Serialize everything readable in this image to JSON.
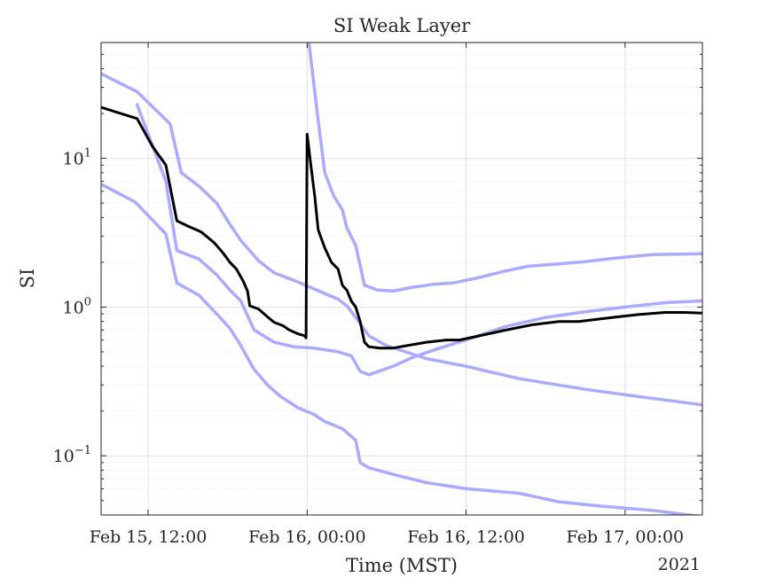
{
  "chart_data": {
    "type": "line",
    "title": "SI Weak Layer",
    "xlabel": "Time (MST)",
    "ylabel": "SI",
    "year_label": "2021",
    "x_range": [
      "2021-02-15T08:27",
      "2021-02-17T05:50"
    ],
    "ylim": [
      0.04,
      60
    ],
    "yscale": "log",
    "grid": true,
    "x_ticks": [
      {
        "x": "2021-02-15T12:00",
        "label": "Feb 15, 12:00"
      },
      {
        "x": "2021-02-16T00:00",
        "label": "Feb 16, 00:00"
      },
      {
        "x": "2021-02-16T12:00",
        "label": "Feb 16, 12:00"
      },
      {
        "x": "2021-02-17T00:00",
        "label": "Feb 17, 00:00"
      }
    ],
    "y_ticks": [
      {
        "y": 0.1,
        "base": "10",
        "exp": "−1"
      },
      {
        "y": 1,
        "base": "10",
        "exp": "0"
      },
      {
        "y": 10,
        "base": "10",
        "exp": "1"
      }
    ],
    "colors": {
      "main": "#000000",
      "band": "#aaaaff",
      "grid": "#e1e1e1",
      "axis": "#262626"
    },
    "series": [
      {
        "role": "band",
        "points": [
          [
            "2021-02-15T08:27",
            37
          ],
          [
            "2021-02-15T11:10",
            28
          ],
          [
            "2021-02-15T13:40",
            17
          ],
          [
            "2021-02-15T14:30",
            8
          ],
          [
            "2021-02-15T15:50",
            6.5
          ],
          [
            "2021-02-15T17:10",
            5
          ],
          [
            "2021-02-15T18:10",
            3.6
          ],
          [
            "2021-02-15T19:00",
            2.8
          ],
          [
            "2021-02-15T20:20",
            2.05
          ],
          [
            "2021-02-15T21:30",
            1.7
          ],
          [
            "2021-02-15T23:20",
            1.47
          ],
          [
            "2021-02-16T01:00",
            1.27
          ],
          [
            "2021-02-16T02:20",
            1.13
          ],
          [
            "2021-02-16T03:00",
            1.02
          ],
          [
            "2021-02-16T03:40",
            0.85
          ],
          [
            "2021-02-16T04:40",
            0.64
          ],
          [
            "2021-02-16T06:00",
            0.55
          ],
          [
            "2021-02-16T09:00",
            0.45
          ],
          [
            "2021-02-16T12:00",
            0.4
          ],
          [
            "2021-02-16T16:00",
            0.33
          ],
          [
            "2021-02-16T21:00",
            0.28
          ],
          [
            "2021-02-17T01:00",
            0.25
          ],
          [
            "2021-02-17T05:50",
            0.22
          ]
        ]
      },
      {
        "role": "band",
        "points": [
          [
            "2021-02-15T11:10",
            23
          ],
          [
            "2021-02-15T13:20",
            7
          ],
          [
            "2021-02-15T14:10",
            2.4
          ],
          [
            "2021-02-15T15:50",
            2.1
          ],
          [
            "2021-02-15T17:10",
            1.65
          ],
          [
            "2021-02-15T18:10",
            1.3
          ],
          [
            "2021-02-15T19:00",
            1.1
          ],
          [
            "2021-02-15T20:00",
            0.7
          ],
          [
            "2021-02-15T21:30",
            0.58
          ],
          [
            "2021-02-15T23:00",
            0.54
          ],
          [
            "2021-02-16T00:30",
            0.53
          ],
          [
            "2021-02-16T02:20",
            0.5
          ],
          [
            "2021-02-16T03:20",
            0.47
          ],
          [
            "2021-02-16T04:00",
            0.37
          ],
          [
            "2021-02-16T04:40",
            0.35
          ],
          [
            "2021-02-16T06:30",
            0.4
          ],
          [
            "2021-02-16T08:00",
            0.46
          ],
          [
            "2021-02-16T10:00",
            0.53
          ],
          [
            "2021-02-16T12:00",
            0.6
          ],
          [
            "2021-02-16T15:00",
            0.74
          ],
          [
            "2021-02-16T18:00",
            0.85
          ],
          [
            "2021-02-16T21:00",
            0.93
          ],
          [
            "2021-02-17T00:00",
            1.0
          ],
          [
            "2021-02-17T03:00",
            1.07
          ],
          [
            "2021-02-17T05:50",
            1.1
          ]
        ]
      },
      {
        "role": "band",
        "points": [
          [
            "2021-02-15T08:27",
            6.7
          ],
          [
            "2021-02-15T11:00",
            5.1
          ],
          [
            "2021-02-15T13:20",
            3.1
          ],
          [
            "2021-02-15T14:10",
            1.45
          ],
          [
            "2021-02-15T15:50",
            1.2
          ],
          [
            "2021-02-15T17:10",
            0.9
          ],
          [
            "2021-02-15T18:10",
            0.72
          ],
          [
            "2021-02-15T19:00",
            0.55
          ],
          [
            "2021-02-15T20:00",
            0.38
          ],
          [
            "2021-02-15T21:00",
            0.3
          ],
          [
            "2021-02-15T22:00",
            0.25
          ],
          [
            "2021-02-15T23:20",
            0.21
          ],
          [
            "2021-02-16T00:30",
            0.19
          ],
          [
            "2021-02-16T01:20",
            0.17
          ],
          [
            "2021-02-16T02:40",
            0.152
          ],
          [
            "2021-02-16T03:40",
            0.127
          ],
          [
            "2021-02-16T04:00",
            0.09
          ],
          [
            "2021-02-16T04:40",
            0.083
          ],
          [
            "2021-02-16T06:30",
            0.075
          ],
          [
            "2021-02-16T09:00",
            0.066
          ],
          [
            "2021-02-16T12:00",
            0.06
          ],
          [
            "2021-02-16T16:00",
            0.056
          ],
          [
            "2021-02-16T19:00",
            0.049
          ],
          [
            "2021-02-16T22:00",
            0.046
          ],
          [
            "2021-02-17T02:00",
            0.043
          ],
          [
            "2021-02-17T05:50",
            0.039
          ]
        ]
      },
      {
        "role": "band",
        "points": [
          [
            "2021-02-16T00:08",
            60
          ],
          [
            "2021-02-16T00:50",
            18
          ],
          [
            "2021-02-16T01:20",
            8
          ],
          [
            "2021-02-16T02:00",
            5.6
          ],
          [
            "2021-02-16T02:40",
            4.5
          ],
          [
            "2021-02-16T03:00",
            3.4
          ],
          [
            "2021-02-16T03:40",
            2.6
          ],
          [
            "2021-02-16T04:20",
            1.4
          ],
          [
            "2021-02-16T05:20",
            1.3
          ],
          [
            "2021-02-16T06:30",
            1.28
          ],
          [
            "2021-02-16T08:00",
            1.36
          ],
          [
            "2021-02-16T09:30",
            1.42
          ],
          [
            "2021-02-16T11:00",
            1.45
          ],
          [
            "2021-02-16T13:00",
            1.58
          ],
          [
            "2021-02-16T15:00",
            1.75
          ],
          [
            "2021-02-16T16:40",
            1.88
          ],
          [
            "2021-02-16T19:00",
            1.95
          ],
          [
            "2021-02-16T21:00",
            2.02
          ],
          [
            "2021-02-16T23:00",
            2.12
          ],
          [
            "2021-02-17T02:00",
            2.25
          ],
          [
            "2021-02-17T05:50",
            2.28
          ]
        ]
      },
      {
        "role": "main",
        "points": [
          [
            "2021-02-15T08:27",
            22
          ],
          [
            "2021-02-15T11:10",
            18.5
          ],
          [
            "2021-02-15T12:20",
            12
          ],
          [
            "2021-02-15T13:20",
            9
          ],
          [
            "2021-02-15T14:10",
            3.8
          ],
          [
            "2021-02-15T15:00",
            3.5
          ],
          [
            "2021-02-15T16:00",
            3.2
          ],
          [
            "2021-02-15T17:00",
            2.7
          ],
          [
            "2021-02-15T17:40",
            2.3
          ],
          [
            "2021-02-15T18:10",
            2.0
          ],
          [
            "2021-02-15T18:40",
            1.8
          ],
          [
            "2021-02-15T19:10",
            1.5
          ],
          [
            "2021-02-15T19:30",
            1.28
          ],
          [
            "2021-02-15T19:40",
            1.02
          ],
          [
            "2021-02-15T20:20",
            0.97
          ],
          [
            "2021-02-15T21:00",
            0.86
          ],
          [
            "2021-02-15T21:30",
            0.79
          ],
          [
            "2021-02-15T22:10",
            0.75
          ],
          [
            "2021-02-15T22:40",
            0.7
          ],
          [
            "2021-02-15T23:20",
            0.66
          ],
          [
            "2021-02-15T23:50",
            0.64
          ],
          [
            "2021-02-15T23:55",
            0.62
          ],
          [
            "2021-02-16T00:00",
            14.5
          ],
          [
            "2021-02-16T00:15",
            9.5
          ],
          [
            "2021-02-16T00:35",
            5.5
          ],
          [
            "2021-02-16T00:50",
            3.3
          ],
          [
            "2021-02-16T01:20",
            2.5
          ],
          [
            "2021-02-16T01:50",
            2.0
          ],
          [
            "2021-02-16T02:20",
            1.8
          ],
          [
            "2021-02-16T02:40",
            1.4
          ],
          [
            "2021-02-16T03:00",
            1.3
          ],
          [
            "2021-02-16T03:20",
            1.1
          ],
          [
            "2021-02-16T03:40",
            1.0
          ],
          [
            "2021-02-16T04:00",
            0.8
          ],
          [
            "2021-02-16T04:20",
            0.58
          ],
          [
            "2021-02-16T04:40",
            0.54
          ],
          [
            "2021-02-16T05:30",
            0.53
          ],
          [
            "2021-02-16T06:30",
            0.53
          ],
          [
            "2021-02-16T07:30",
            0.55
          ],
          [
            "2021-02-16T09:00",
            0.58
          ],
          [
            "2021-02-16T10:30",
            0.6
          ],
          [
            "2021-02-16T11:30",
            0.6
          ],
          [
            "2021-02-16T13:00",
            0.64
          ],
          [
            "2021-02-16T15:00",
            0.7
          ],
          [
            "2021-02-16T17:00",
            0.76
          ],
          [
            "2021-02-16T19:00",
            0.8
          ],
          [
            "2021-02-16T20:30",
            0.8
          ],
          [
            "2021-02-16T22:00",
            0.83
          ],
          [
            "2021-02-16T23:30",
            0.86
          ],
          [
            "2021-02-17T01:00",
            0.89
          ],
          [
            "2021-02-17T03:00",
            0.92
          ],
          [
            "2021-02-17T04:30",
            0.92
          ],
          [
            "2021-02-17T05:50",
            0.91
          ]
        ]
      }
    ]
  }
}
